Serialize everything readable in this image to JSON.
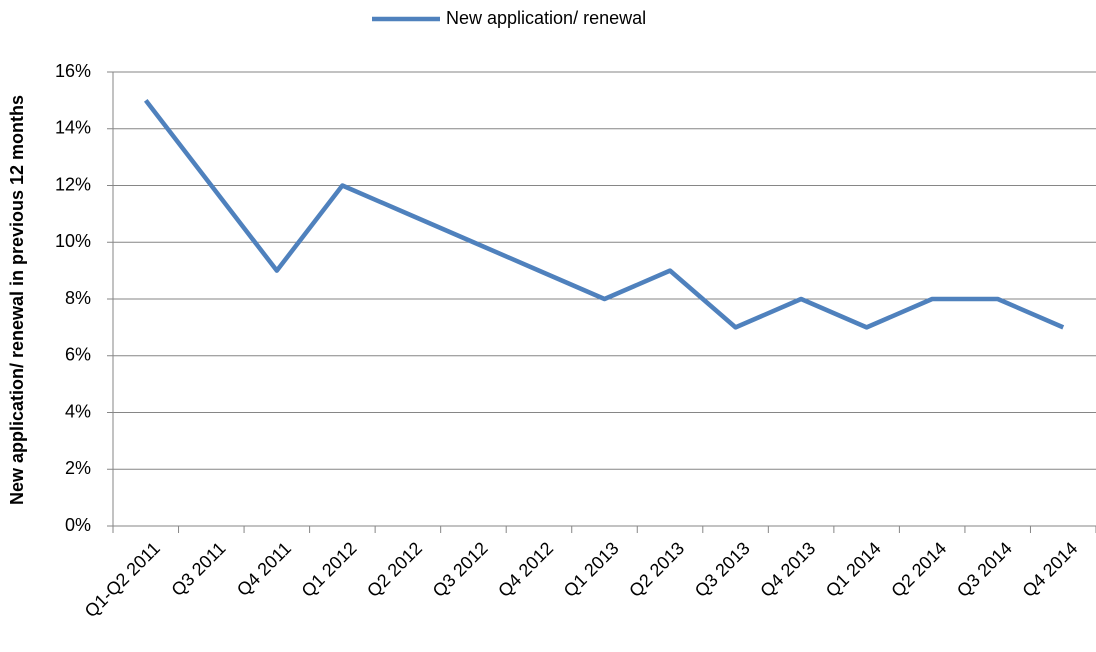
{
  "chart_data": {
    "type": "line",
    "categories": [
      "Q1-Q2 2011",
      "Q3 2011",
      "Q4 2011",
      "Q1 2012",
      "Q2 2012",
      "Q3 2012",
      "Q4 2012",
      "Q1 2013",
      "Q2 2013",
      "Q3 2013",
      "Q4 2013",
      "Q1 2014",
      "Q2 2014",
      "Q3 2014",
      "Q4 2014"
    ],
    "series": [
      {
        "name": "New application/ renewal",
        "color": "#4f81bd",
        "values": [
          15,
          12,
          9,
          12,
          11,
          10,
          9,
          8,
          9,
          7,
          8,
          7,
          8,
          8,
          7
        ]
      }
    ],
    "y_label": "New application/ renewal in previous 12 months",
    "ylim": [
      0,
      16
    ],
    "yticks": [
      {
        "value": 0,
        "label": "0%"
      },
      {
        "value": 2,
        "label": "2%"
      },
      {
        "value": 4,
        "label": "4%"
      },
      {
        "value": 6,
        "label": "6%"
      },
      {
        "value": 8,
        "label": "8%"
      },
      {
        "value": 10,
        "label": "10%"
      },
      {
        "value": 12,
        "label": "12%"
      },
      {
        "value": 14,
        "label": "14%"
      },
      {
        "value": 16,
        "label": "16%"
      }
    ],
    "grid": true,
    "legend": "top"
  }
}
